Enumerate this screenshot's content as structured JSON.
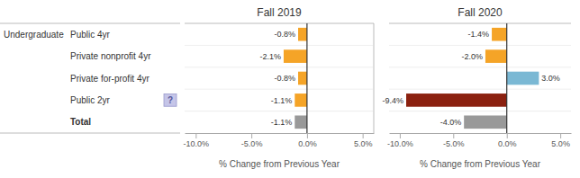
{
  "chart_data": [
    {
      "type": "bar",
      "orientation": "horizontal",
      "title": "Fall 2019",
      "categories": [
        "Public 4yr",
        "Private nonprofit 4yr",
        "Private for-profit 4yr",
        "Public 2yr",
        "Total"
      ],
      "values": [
        -0.8,
        -2.1,
        -0.8,
        -1.1,
        -1.1
      ],
      "value_labels": [
        "-0.8%",
        "-2.1%",
        "-0.8%",
        "-1.1%",
        "-1.1%"
      ],
      "colors": [
        "#f5a427",
        "#f5a427",
        "#f5a427",
        "#f5a427",
        "#999999"
      ],
      "data_labels": true,
      "xlabel": "% Change from Previous Year",
      "xlim": [
        -11,
        6
      ],
      "xticks": [
        {
          "value": -10,
          "label": "-10.0%"
        },
        {
          "value": -5,
          "label": "-5.0%"
        },
        {
          "value": 0,
          "label": "0.0%"
        },
        {
          "value": 5,
          "label": "5.0%"
        }
      ],
      "annotations": [
        {
          "text": "Undergraduate",
          "category": "Public 4yr"
        },
        {
          "text": "?",
          "category": "Public 2yr"
        }
      ]
    },
    {
      "type": "bar",
      "orientation": "horizontal",
      "title": "Fall 2020",
      "categories": [
        "Public 4yr",
        "Private nonprofit 4yr",
        "Private for-profit 4yr",
        "Public 2yr",
        "Total"
      ],
      "values": [
        -1.4,
        -2.0,
        3.0,
        -9.4,
        -4.0
      ],
      "value_labels": [
        "-1.4%",
        "-2.0%",
        "3.0%",
        "-9.4%",
        "-4.0%"
      ],
      "colors": [
        "#f5a427",
        "#f5a427",
        "#7ab8d4",
        "#8b2110",
        "#999999"
      ],
      "data_labels": true,
      "xlabel": "% Change from Previous Year",
      "xlim": [
        -11,
        6
      ],
      "xticks": [
        {
          "value": -10,
          "label": "-10.0%"
        },
        {
          "value": -5,
          "label": "-5.0%"
        },
        {
          "value": 0,
          "label": "0.0%"
        },
        {
          "value": 5,
          "label": "5.0%"
        }
      ]
    }
  ]
}
